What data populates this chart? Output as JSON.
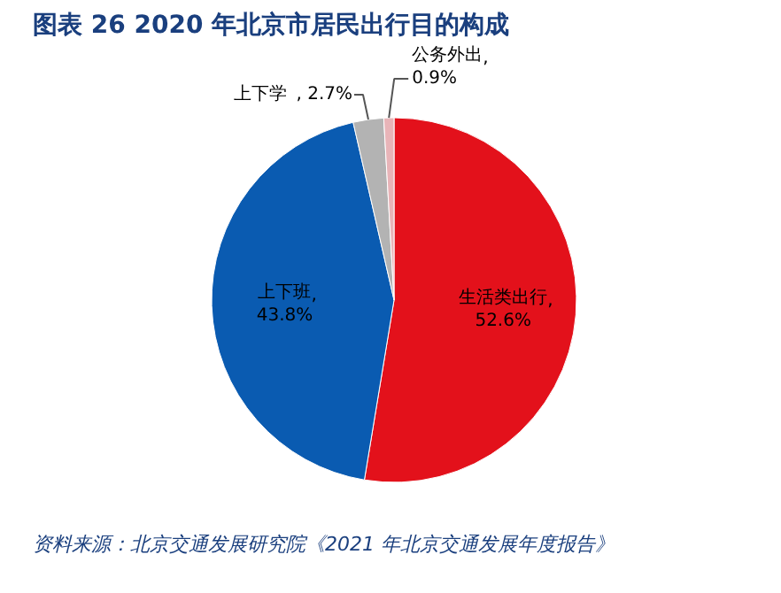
{
  "chart_data": {
    "type": "pie",
    "title": "图表 26  2020 年北京市居民出行目的构成",
    "categories": [
      "生活类出行",
      "上下班",
      "上下学",
      "公务外出"
    ],
    "values": [
      52.6,
      43.8,
      2.7,
      0.9
    ],
    "colors": [
      "#e3111b",
      "#0a5bb1",
      "#b3b3b3",
      "#e8b4b8"
    ],
    "value_labels": [
      ", 52.6%",
      ", 43.8%",
      ", 2.7%",
      ", 0.9%"
    ],
    "annotations": [
      "资料来源：北京交通发展研究院《2021 年北京交通发展年度报告》"
    ]
  }
}
